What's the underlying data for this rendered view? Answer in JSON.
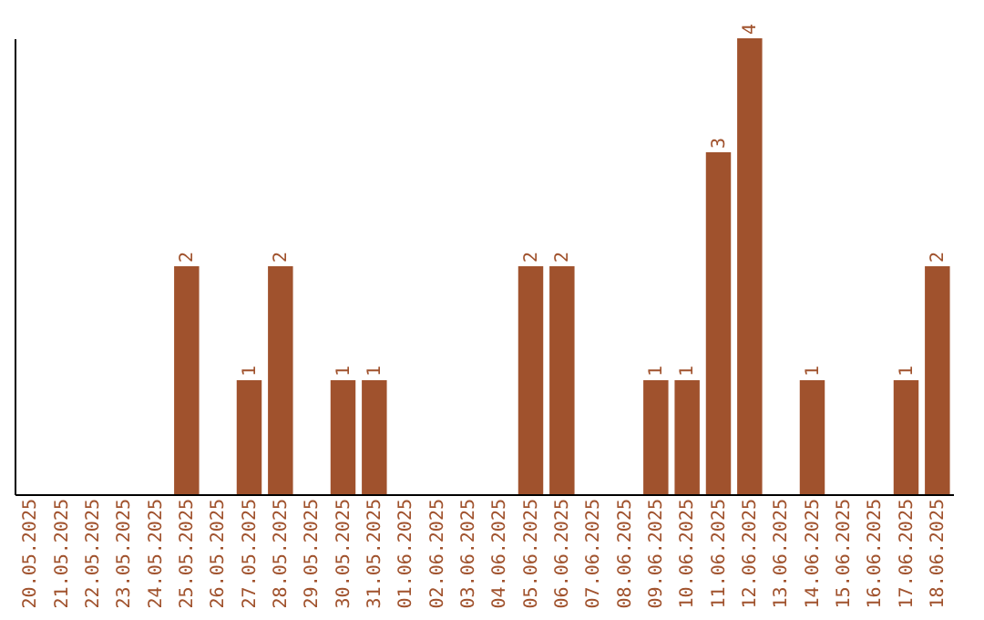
{
  "chart_data": {
    "type": "bar",
    "categories": [
      "20.05.2025",
      "21.05.2025",
      "22.05.2025",
      "23.05.2025",
      "24.05.2025",
      "25.05.2025",
      "26.05.2025",
      "27.05.2025",
      "28.05.2025",
      "29.05.2025",
      "30.05.2025",
      "31.05.2025",
      "01.06.2025",
      "02.06.2025",
      "03.06.2025",
      "04.06.2025",
      "05.06.2025",
      "06.06.2025",
      "07.06.2025",
      "08.06.2025",
      "09.06.2025",
      "10.06.2025",
      "11.06.2025",
      "12.06.2025",
      "13.06.2025",
      "14.06.2025",
      "15.06.2025",
      "16.06.2025",
      "17.06.2025",
      "18.06.2025"
    ],
    "values": [
      0,
      0,
      0,
      0,
      0,
      2,
      0,
      1,
      2,
      0,
      1,
      1,
      0,
      0,
      0,
      0,
      2,
      2,
      0,
      0,
      1,
      1,
      3,
      4,
      0,
      1,
      0,
      0,
      1,
      2
    ],
    "value_labels": [
      null,
      null,
      null,
      null,
      null,
      "2",
      null,
      "1",
      "2",
      null,
      "1",
      "1",
      null,
      null,
      null,
      null,
      "2",
      "2",
      null,
      null,
      "1",
      "1",
      "3",
      "4",
      null,
      "1",
      null,
      null,
      "1",
      "2"
    ],
    "color": "#a0522d",
    "tick_labels": "x",
    "grid": false
  }
}
